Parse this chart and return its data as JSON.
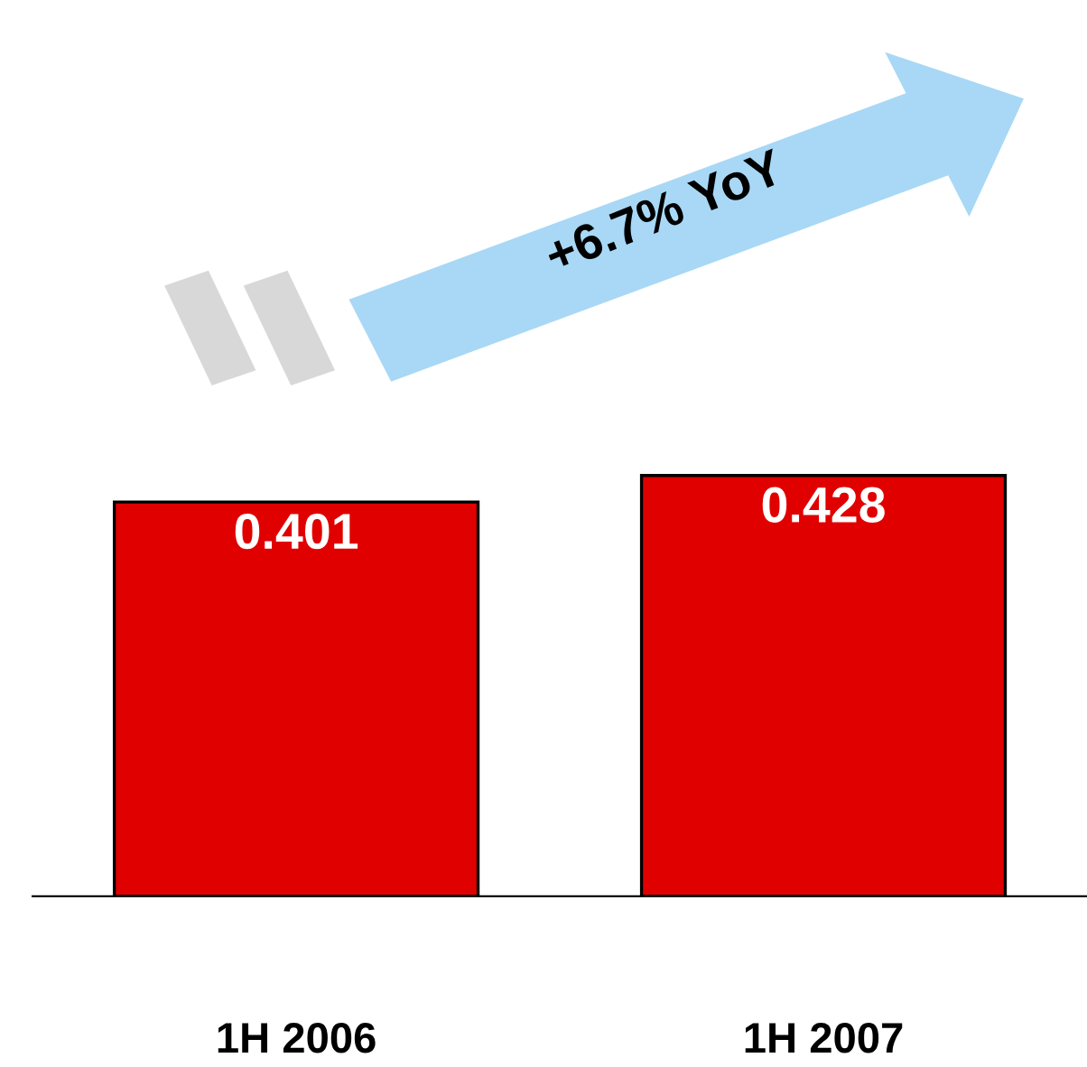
{
  "chart_data": {
    "type": "bar",
    "categories": [
      "1H 2006",
      "1H 2007"
    ],
    "values": [
      0.401,
      0.428
    ],
    "color": "#e00000",
    "data_labels": true,
    "annotations": [
      "+6.7% YoY"
    ]
  }
}
